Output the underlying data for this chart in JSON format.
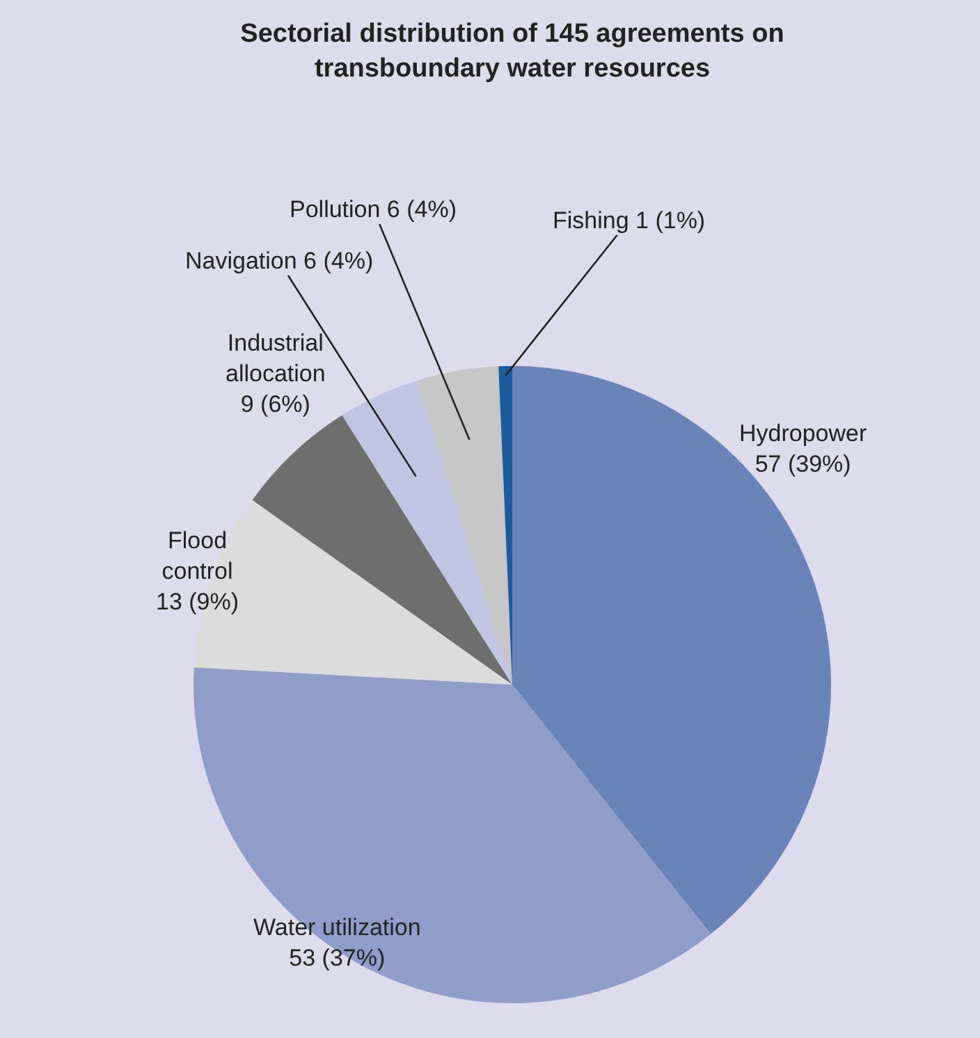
{
  "chart_data": {
    "type": "pie",
    "title": "Sectorial distribution of 145 agreements on transboundary water resources",
    "categories": [
      "Hydropower",
      "Water utilization",
      "Flood control",
      "Industrial allocation",
      "Navigation",
      "Pollution",
      "Fishing"
    ],
    "values": [
      57,
      53,
      13,
      9,
      6,
      6,
      1
    ],
    "value_labels": [
      "57 (39%)",
      "53 (37%)",
      "13 (9%)",
      "9 (6%)",
      "6 (4%)",
      "6 (4%)",
      "1 (1%)"
    ],
    "colors": [
      "#6a84b9",
      "#8f9dc9",
      "#dcdcdc",
      "#6e6e6e",
      "#c0c5e2",
      "#c6c6c6",
      "#1d5c9c"
    ],
    "legend": false
  }
}
